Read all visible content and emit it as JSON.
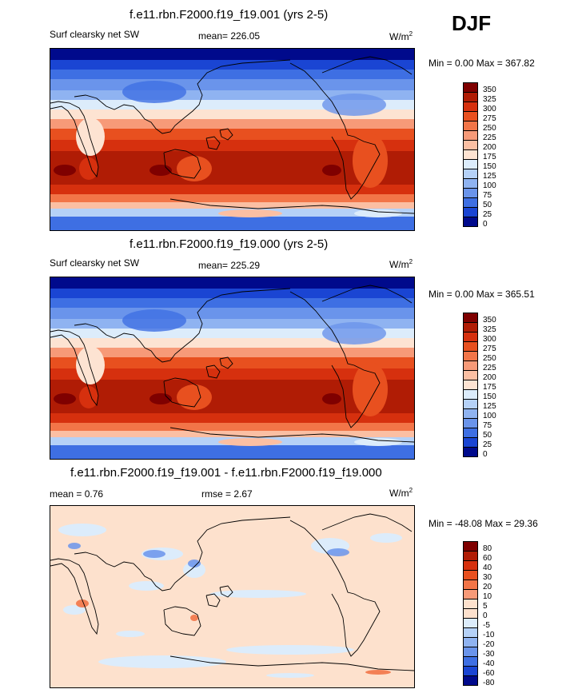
{
  "season": "DJF",
  "panels": [
    {
      "title": "f.e11.rbn.F2000.f19_f19.001 (yrs 2-5)",
      "left_label": "Surf clearsky net SW",
      "mean_text": "mean= 226.05",
      "units": "W/m",
      "units_sup": "2",
      "minmax": "Min =   0.00 Max = 367.82",
      "colorbar": {
        "labels": [
          "350",
          "325",
          "300",
          "275",
          "250",
          "225",
          "200",
          "175",
          "150",
          "125",
          "100",
          "75",
          "50",
          "25",
          "0"
        ],
        "colors": [
          "#7f0000",
          "#b01c05",
          "#d6300e",
          "#e8501f",
          "#f27548",
          "#f79a78",
          "#fbbfa3",
          "#fde3d2",
          "#dcecfb",
          "#b5d1f7",
          "#8fb3f1",
          "#6a94eb",
          "#3e6fe3",
          "#1a45d3",
          "#000a8c"
        ]
      }
    },
    {
      "title": "f.e11.rbn.F2000.f19_f19.000 (yrs 2-5)",
      "left_label": "Surf clearsky net SW",
      "mean_text": "mean= 225.29",
      "units": "W/m",
      "units_sup": "2",
      "minmax": "Min =   0.00 Max = 365.51",
      "colorbar": {
        "labels": [
          "350",
          "325",
          "300",
          "275",
          "250",
          "225",
          "200",
          "175",
          "150",
          "125",
          "100",
          "75",
          "50",
          "25",
          "0"
        ],
        "colors": [
          "#7f0000",
          "#b01c05",
          "#d6300e",
          "#e8501f",
          "#f27548",
          "#f79a78",
          "#fbbfa3",
          "#fde3d2",
          "#dcecfb",
          "#b5d1f7",
          "#8fb3f1",
          "#6a94eb",
          "#3e6fe3",
          "#1a45d3",
          "#000a8c"
        ]
      }
    },
    {
      "title": "f.e11.rbn.F2000.f19_f19.001 - f.e11.rbn.F2000.f19_f19.000",
      "left_label": "mean =   0.76",
      "mean_text": "rmse =   2.67",
      "units": "W/m",
      "units_sup": "2",
      "minmax": "Min = -48.08 Max =  29.36",
      "colorbar": {
        "labels": [
          "80",
          "60",
          "40",
          "30",
          "20",
          "10",
          "5",
          "0",
          "-5",
          "-10",
          "-20",
          "-30",
          "-40",
          "-60",
          "-80"
        ],
        "colors": [
          "#7f0000",
          "#b01c05",
          "#d6300e",
          "#e8501f",
          "#f27548",
          "#f79a78",
          "#fde1cd",
          "#fde1cd",
          "#dcecfb",
          "#b5d1f7",
          "#8fb3f1",
          "#6a94eb",
          "#3e6fe3",
          "#1a45d3",
          "#000a8c"
        ]
      }
    }
  ],
  "chart_data": [
    {
      "type": "heatmap",
      "title": "f.e11.rbn.F2000.f19_f19.001 (yrs 2-5)",
      "field": "Surf clearsky net SW",
      "season": "DJF",
      "units": "W/m2",
      "mean": 226.05,
      "min": 0.0,
      "max": 367.82,
      "levels": [
        0,
        25,
        50,
        75,
        100,
        125,
        150,
        175,
        200,
        225,
        250,
        275,
        300,
        325,
        350
      ]
    },
    {
      "type": "heatmap",
      "title": "f.e11.rbn.F2000.f19_f19.000 (yrs 2-5)",
      "field": "Surf clearsky net SW",
      "season": "DJF",
      "units": "W/m2",
      "mean": 225.29,
      "min": 0.0,
      "max": 365.51,
      "levels": [
        0,
        25,
        50,
        75,
        100,
        125,
        150,
        175,
        200,
        225,
        250,
        275,
        300,
        325,
        350
      ]
    },
    {
      "type": "heatmap",
      "title": "f.e11.rbn.F2000.f19_f19.001 - f.e11.rbn.F2000.f19_f19.000",
      "season": "DJF",
      "units": "W/m2",
      "mean": 0.76,
      "rmse": 2.67,
      "min": -48.08,
      "max": 29.36,
      "levels": [
        -80,
        -60,
        -40,
        -30,
        -20,
        -10,
        -5,
        0,
        5,
        10,
        20,
        30,
        40,
        60,
        80
      ]
    }
  ]
}
